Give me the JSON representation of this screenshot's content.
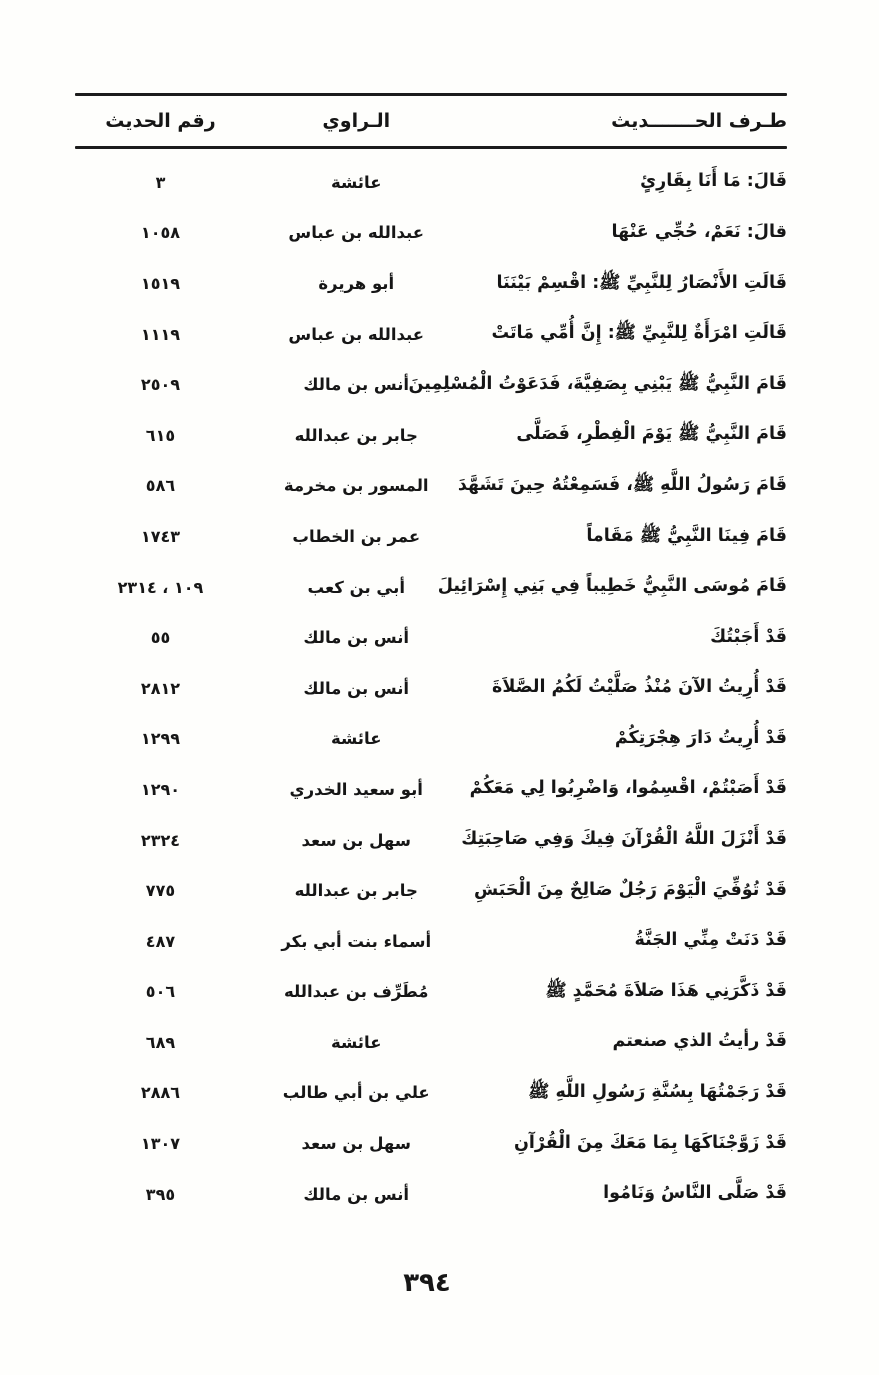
{
  "table": {
    "headers": {
      "hadith": "طـرف الحـــــــديث",
      "narrator": "الـراوي",
      "number": "رقم الحديث"
    },
    "rows": [
      {
        "hadith": "قَالَ: مَا أَنَا بِقَارِئٍ",
        "narrator": "عائشة",
        "number": "٣"
      },
      {
        "hadith": "قالَ: نَعَمْ، حُجِّي عَنْهَا",
        "narrator": "عبدالله بن عباس",
        "number": "١٠٥٨"
      },
      {
        "hadith": "قَالَتِ الأَنْصَارُ لِلنَّبِيِّ ﷺ: اقْسِمْ بَيْنَنَا",
        "narrator": "أبو هريرة",
        "number": "١٥١٩"
      },
      {
        "hadith": "قَالَتِ امْرَأَةٌ لِلنَّبِيِّ ﷺ: إِنَّ أُمِّي مَاتَتْ",
        "narrator": "عبدالله بن عباس",
        "number": "١١١٩"
      },
      {
        "hadith": "قَامَ النَّبِيُّ ﷺ يَبْنِي بِصَفِيَّةَ، فَدَعَوْتُ الْمُسْلِمِينَ",
        "narrator": "أنس بن مالك",
        "number": "٢٥٠٩"
      },
      {
        "hadith": "قَامَ النَّبِيُّ ﷺ يَوْمَ الْفِطْرِ، فَصَلَّى",
        "narrator": "جابر بن عبدالله",
        "number": "٦١٥"
      },
      {
        "hadith": "قَامَ رَسُولُ اللَّهِ ﷺ، فَسَمِعْتُهُ حِينَ تَشَهَّدَ",
        "narrator": "المسور بن مخرمة",
        "number": "٥٨٦"
      },
      {
        "hadith": "قَامَ فِينَا النَّبِيُّ ﷺ مَقَاماً",
        "narrator": "عمر بن الخطاب",
        "number": "١٧٤٣"
      },
      {
        "hadith": "قَامَ مُوسَى النَّبِيُّ خَطِيباً فِي بَنِي إِسْرَائِيلَ",
        "narrator": "أبي بن كعب",
        "number": "١٠٩ ، ٢٣١٤"
      },
      {
        "hadith": "قَدْ أَجَبْتُكَ",
        "narrator": "أنس بن مالك",
        "number": "٥٥"
      },
      {
        "hadith": "قَدْ أُرِيتُ الآنَ مُنْذُ صَلَّيْتُ لَكُمُ الصَّلاَةَ",
        "narrator": "أنس بن مالك",
        "number": "٢٨١٢"
      },
      {
        "hadith": "قَدْ أُرِيتُ دَارَ هِجْرَتِكُمْ",
        "narrator": "عائشة",
        "number": "١٢٩٩"
      },
      {
        "hadith": "قَدْ أَصَبْتُمْ، اقْسِمُوا، وَاضْرِبُوا لِي مَعَكُمْ",
        "narrator": "أبو سعيد الخدري",
        "number": "١٢٩٠"
      },
      {
        "hadith": "قَدْ أَنْزَلَ اللَّهُ الْقُرْآنَ فِيكَ وَفِي صَاحِبَتِكَ",
        "narrator": "سهل بن سعد",
        "number": "٢٣٢٤"
      },
      {
        "hadith": "قَدْ تُوُفِّيَ الْيَوْمَ رَجُلٌ صَالِحٌ مِنَ الْحَبَشِ",
        "narrator": "جابر بن عبدالله",
        "number": "٧٧٥"
      },
      {
        "hadith": "قَدْ دَنَتْ مِنِّي الجَنَّةُ",
        "narrator": "أسماء بنت أبي بكر",
        "number": "٤٨٧"
      },
      {
        "hadith": "قَدْ ذَكَّرَنِي هَذَا صَلاَةَ مُحَمَّدٍ ﷺ",
        "narrator": "مُطَرِّف بن عبدالله",
        "number": "٥٠٦"
      },
      {
        "hadith": "قَدْ رأيتُ الذي صنعتم",
        "narrator": "عائشة",
        "number": "٦٨٩"
      },
      {
        "hadith": "قَدْ رَجَمْتُهَا بِسُنَّةِ رَسُولِ اللَّهِ ﷺ",
        "narrator": "علي بن أبي طالب",
        "number": "٢٨٨٦"
      },
      {
        "hadith": "قَدْ زَوَّجْنَاكَهَا بِمَا مَعَكَ مِنَ الْقُرْآنِ",
        "narrator": "سهل بن سعد",
        "number": "١٣٠٧"
      },
      {
        "hadith": "قَدْ صَلَّى النَّاسُ وَنَامُوا",
        "narrator": "أنس بن مالك",
        "number": "٣٩٥"
      }
    ]
  },
  "footer": {
    "page_number": "٣٩٤"
  }
}
